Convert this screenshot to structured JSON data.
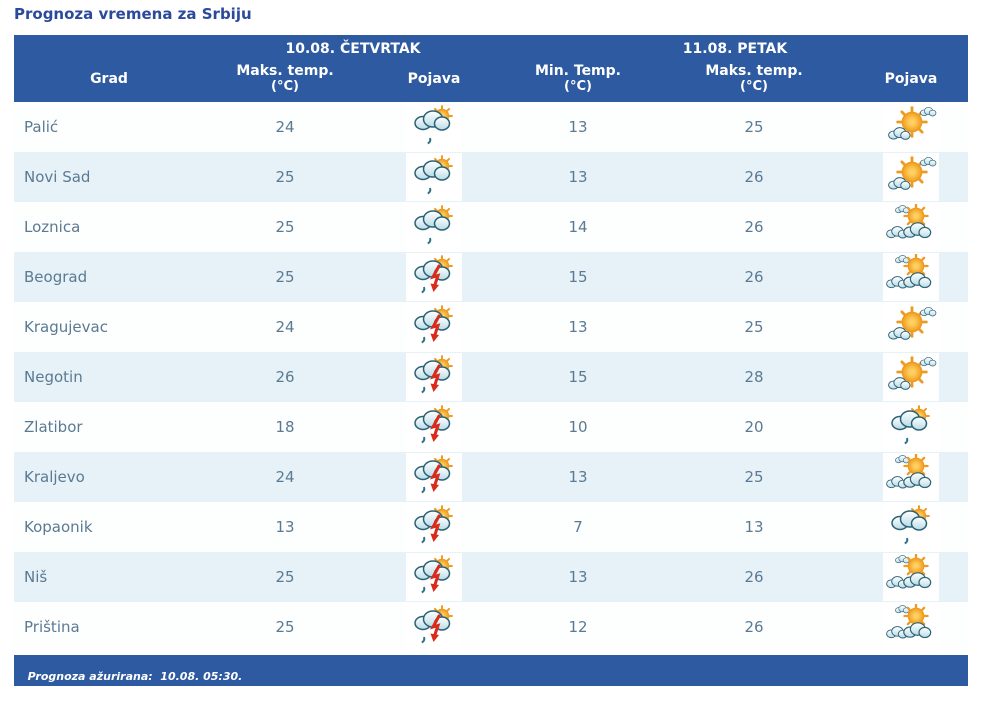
{
  "title": "Prognoza vremena za Srbiju",
  "colors": {
    "header_bg": "#2d5aa0",
    "footer_bg": "#2d5aa0",
    "row_plain": "#fdfefe",
    "row_alt": "#e6f2f8",
    "cell_text": "#5b7a92",
    "title_text": "#2b4a9b",
    "lightning_red": "#d92a1a",
    "sun_orange": "#f2a132",
    "cloud_outline": "#2a6173"
  },
  "header": {
    "col_city": "Grad",
    "day1": {
      "date_label": "10.08. ČETVRTAK",
      "col_max": "Maks. temp.",
      "col_max_unit": "(°C)",
      "col_pojava": "Pojava"
    },
    "day2": {
      "date_label": "11.08. PETAK",
      "col_min": "Min. Temp.",
      "col_min_unit": "(°C)",
      "col_max": "Maks. temp.",
      "col_max_unit": "(°C)",
      "col_pojava": "Pojava"
    }
  },
  "icon_names": {
    "rain_sun": "cloud-sun-light-rain-icon",
    "thunder": "cloud-sun-thunder-rain-icon",
    "sun_cloud": "sun-with-clouds-icon",
    "cloud_sun": "clouds-with-sun-icon"
  },
  "table": {
    "rows": [
      {
        "city": "Palić",
        "day1_max": "24",
        "day1_icon": "rain_sun",
        "day2_min": "13",
        "day2_max": "25",
        "day2_icon": "sun_cloud"
      },
      {
        "city": "Novi Sad",
        "day1_max": "25",
        "day1_icon": "rain_sun",
        "day2_min": "13",
        "day2_max": "26",
        "day2_icon": "sun_cloud"
      },
      {
        "city": "Loznica",
        "day1_max": "25",
        "day1_icon": "rain_sun",
        "day2_min": "14",
        "day2_max": "26",
        "day2_icon": "cloud_sun"
      },
      {
        "city": "Beograd",
        "day1_max": "25",
        "day1_icon": "thunder",
        "day2_min": "15",
        "day2_max": "26",
        "day2_icon": "cloud_sun"
      },
      {
        "city": "Kragujevac",
        "day1_max": "24",
        "day1_icon": "thunder",
        "day2_min": "13",
        "day2_max": "25",
        "day2_icon": "sun_cloud"
      },
      {
        "city": "Negotin",
        "day1_max": "26",
        "day1_icon": "thunder",
        "day2_min": "15",
        "day2_max": "28",
        "day2_icon": "sun_cloud"
      },
      {
        "city": "Zlatibor",
        "day1_max": "18",
        "day1_icon": "thunder",
        "day2_min": "10",
        "day2_max": "20",
        "day2_icon": "rain_sun"
      },
      {
        "city": "Kraljevo",
        "day1_max": "24",
        "day1_icon": "thunder",
        "day2_min": "13",
        "day2_max": "25",
        "day2_icon": "cloud_sun"
      },
      {
        "city": "Kopaonik",
        "day1_max": "13",
        "day1_icon": "thunder",
        "day2_min": "7",
        "day2_max": "13",
        "day2_icon": "rain_sun"
      },
      {
        "city": "Niš",
        "day1_max": "25",
        "day1_icon": "thunder",
        "day2_min": "13",
        "day2_max": "26",
        "day2_icon": "cloud_sun"
      },
      {
        "city": "Priština",
        "day1_max": "25",
        "day1_icon": "thunder",
        "day2_min": "12",
        "day2_max": "26",
        "day2_icon": "cloud_sun"
      }
    ]
  },
  "footer": {
    "updated_label": "Prognoza ažurirana:  10.08. 05:30."
  }
}
